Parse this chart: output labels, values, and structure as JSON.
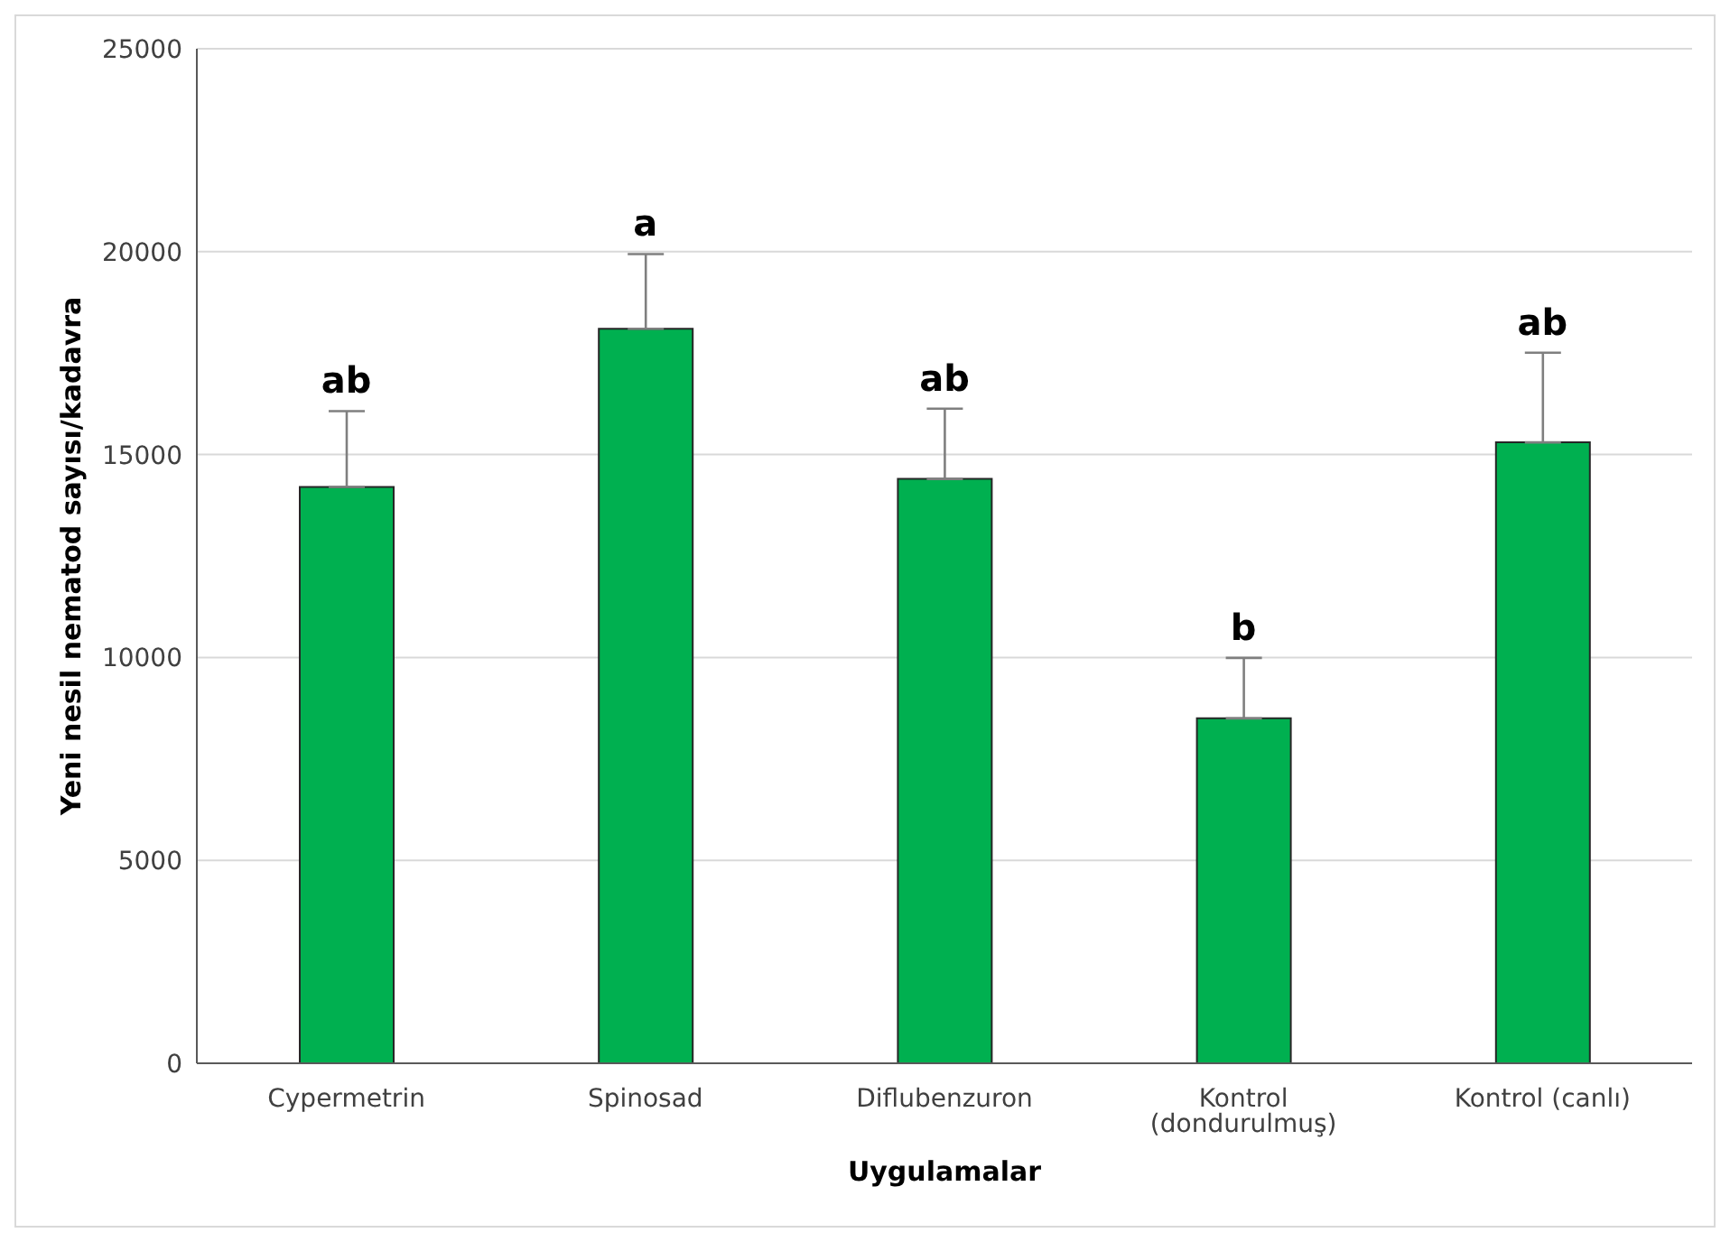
{
  "chart_data": {
    "type": "bar",
    "xlabel": "Uygulamalar",
    "ylabel": "Yeni nesil nematod sayısı/kadavra",
    "categories": [
      "Cypermetrin",
      "Spinosad",
      "Diflubenzuron",
      "Kontrol (dondurulmuş)",
      "Kontrol (canlı)"
    ],
    "values": [
      14200,
      18100,
      14400,
      8500,
      15300
    ],
    "errors": [
      [
        14200,
        16070
      ],
      [
        18100,
        19940
      ],
      [
        14400,
        16130
      ],
      [
        8500,
        9990
      ],
      [
        15300,
        17510
      ]
    ],
    "color": "#00b050",
    "ylim": [
      0,
      25000
    ],
    "yticks": [
      0,
      5000,
      10000,
      15000,
      20000,
      25000
    ],
    "grid": "y",
    "annotations": [
      "ab",
      "a",
      "ab",
      "b",
      "ab"
    ]
  }
}
